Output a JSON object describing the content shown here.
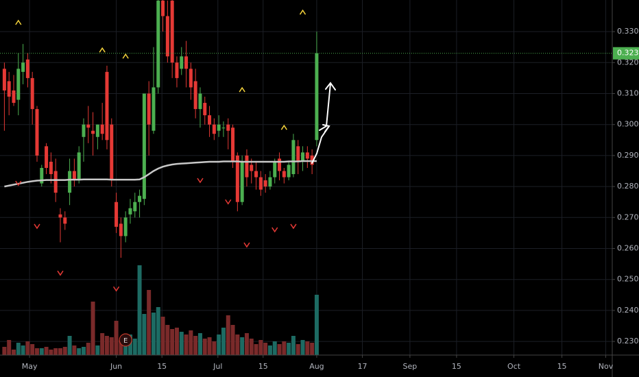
{
  "chart_data": {
    "type": "candlestick",
    "up_color": "#4caf50",
    "down_color": "#e53935",
    "volume_up_color": "#1d6b63",
    "volume_down_color": "#7a2a2a",
    "ma_color": "#c8c8c8",
    "up_signal_color": "#f5d33b",
    "down_signal_color": "#e53935",
    "grid": true,
    "xlim": [
      -0.94,
      130.4
    ],
    "xticks": [
      {
        "value": 5.4,
        "label": "May"
      },
      {
        "value": 24,
        "label": "Jun"
      },
      {
        "value": 33.8,
        "label": "15"
      },
      {
        "value": 45.8,
        "label": "Jul"
      },
      {
        "value": 55.5,
        "label": "15"
      },
      {
        "value": 67,
        "label": "Aug"
      },
      {
        "value": 76.8,
        "label": "17"
      },
      {
        "value": 87,
        "label": "Sep"
      },
      {
        "value": 97,
        "label": "15"
      },
      {
        "value": 109.3,
        "label": "Oct"
      },
      {
        "value": 119.6,
        "label": "15"
      },
      {
        "value": 129,
        "label": "Nov"
      }
    ],
    "ylim": [
      0.2256,
      0.3402
    ],
    "yticks": [
      {
        "value": 0.23,
        "label": "0.230"
      },
      {
        "value": 0.24,
        "label": "0.240"
      },
      {
        "value": 0.25,
        "label": "0.250"
      },
      {
        "value": 0.26,
        "label": "0.260"
      },
      {
        "value": 0.27,
        "label": "0.270"
      },
      {
        "value": 0.28,
        "label": "0.280"
      },
      {
        "value": 0.29,
        "label": "0.290"
      },
      {
        "value": 0.3,
        "label": "0.300"
      },
      {
        "value": 0.31,
        "label": "0.310"
      },
      {
        "value": 0.32,
        "label": "0.320"
      },
      {
        "value": 0.33,
        "label": "0.330"
      }
    ],
    "volume_lim": [
      0,
      518
    ],
    "last_price": {
      "value": 0.323,
      "label": "0.323"
    },
    "earnings_label": "E",
    "earnings_index": 26,
    "open": [
      0.318,
      0.314,
      0.311,
      0.308,
      0.317,
      0.321,
      0.315,
      0.305,
      0.281,
      0.293,
      0.288,
      0.285,
      0.271,
      0.27,
      0.278,
      0.285,
      0.282,
      0.296,
      0.3,
      0.298,
      0.296,
      0.3,
      0.317,
      0.3,
      0.275,
      0.268,
      0.264,
      0.271,
      0.272,
      0.275,
      0.276,
      0.31,
      0.298,
      0.312,
      0.34,
      0.335,
      0.34,
      0.32,
      0.318,
      0.322,
      0.318,
      0.314,
      0.305,
      0.307,
      0.303,
      0.3,
      0.298,
      0.299,
      0.3,
      0.299,
      0.29,
      0.275,
      0.29,
      0.287,
      0.285,
      0.283,
      0.282,
      0.28,
      0.283,
      0.289,
      0.285,
      0.283,
      0.284,
      0.293,
      0.288,
      0.291,
      0.29,
      0.295
    ],
    "high": [
      0.32,
      0.317,
      0.316,
      0.323,
      0.326,
      0.323,
      0.317,
      0.306,
      0.287,
      0.294,
      0.291,
      0.289,
      0.273,
      0.272,
      0.289,
      0.289,
      0.293,
      0.302,
      0.306,
      0.304,
      0.3,
      0.307,
      0.319,
      0.302,
      0.278,
      0.27,
      0.272,
      0.276,
      0.278,
      0.279,
      0.31,
      0.314,
      0.325,
      0.345,
      0.342,
      0.34,
      0.345,
      0.322,
      0.325,
      0.327,
      0.32,
      0.318,
      0.312,
      0.309,
      0.306,
      0.302,
      0.303,
      0.301,
      0.302,
      0.3,
      0.291,
      0.29,
      0.292,
      0.289,
      0.288,
      0.285,
      0.284,
      0.285,
      0.289,
      0.291,
      0.286,
      0.288,
      0.297,
      0.295,
      0.293,
      0.293,
      0.292,
      0.33
    ],
    "low": [
      0.298,
      0.303,
      0.306,
      0.303,
      0.313,
      0.312,
      0.3,
      0.288,
      0.28,
      0.284,
      0.281,
      0.275,
      0.262,
      0.266,
      0.274,
      0.28,
      0.281,
      0.288,
      0.294,
      0.29,
      0.292,
      0.295,
      0.292,
      0.28,
      0.265,
      0.257,
      0.262,
      0.268,
      0.27,
      0.27,
      0.274,
      0.29,
      0.297,
      0.31,
      0.33,
      0.32,
      0.315,
      0.312,
      0.316,
      0.312,
      0.308,
      0.302,
      0.299,
      0.3,
      0.296,
      0.295,
      0.296,
      0.296,
      0.292,
      0.286,
      0.272,
      0.274,
      0.28,
      0.281,
      0.279,
      0.277,
      0.278,
      0.279,
      0.281,
      0.282,
      0.281,
      0.282,
      0.283,
      0.284,
      0.285,
      0.286,
      0.284,
      0.293
    ],
    "close": [
      0.311,
      0.309,
      0.307,
      0.318,
      0.32,
      0.315,
      0.305,
      0.29,
      0.286,
      0.286,
      0.284,
      0.278,
      0.27,
      0.268,
      0.285,
      0.282,
      0.291,
      0.3,
      0.299,
      0.297,
      0.3,
      0.297,
      0.295,
      0.282,
      0.267,
      0.264,
      0.27,
      0.273,
      0.275,
      0.277,
      0.31,
      0.3,
      0.312,
      0.34,
      0.335,
      0.322,
      0.32,
      0.315,
      0.322,
      0.318,
      0.312,
      0.305,
      0.31,
      0.303,
      0.3,
      0.297,
      0.3,
      0.299,
      0.298,
      0.288,
      0.275,
      0.288,
      0.283,
      0.285,
      0.283,
      0.279,
      0.28,
      0.283,
      0.288,
      0.285,
      0.283,
      0.287,
      0.295,
      0.288,
      0.291,
      0.289,
      0.287,
      0.323
    ],
    "volume": [
      12,
      22,
      8,
      18,
      14,
      20,
      16,
      10,
      10,
      12,
      8,
      10,
      10,
      12,
      28,
      14,
      10,
      12,
      18,
      78,
      14,
      32,
      28,
      26,
      50,
      22,
      26,
      30,
      24,
      131,
      60,
      95,
      62,
      70,
      56,
      44,
      38,
      40,
      34,
      30,
      36,
      28,
      32,
      24,
      26,
      20,
      30,
      40,
      58,
      44,
      30,
      26,
      32,
      24,
      16,
      22,
      18,
      14,
      20,
      16,
      20,
      18,
      28,
      16,
      22,
      20,
      18,
      88
    ],
    "ma": [
      0.28,
      0.2803,
      0.2806,
      0.2809,
      0.2812,
      0.2815,
      0.2817,
      0.2819,
      0.282,
      0.2821,
      0.2821,
      0.2821,
      0.2821,
      0.2821,
      0.2822,
      0.2822,
      0.2822,
      0.2823,
      0.2823,
      0.2823,
      0.2823,
      0.2823,
      0.2823,
      0.2822,
      0.2822,
      0.2822,
      0.2822,
      0.2822,
      0.2822,
      0.2823,
      0.283,
      0.284,
      0.285,
      0.2858,
      0.2864,
      0.2868,
      0.2871,
      0.2873,
      0.2874,
      0.2875,
      0.2876,
      0.2877,
      0.2878,
      0.2879,
      0.288,
      0.288,
      0.288,
      0.2881,
      0.2881,
      0.2881,
      0.2881,
      0.288,
      0.288,
      0.288,
      0.288,
      0.288,
      0.288,
      0.288,
      0.288,
      0.288,
      0.288,
      0.2881,
      0.2881,
      0.2881,
      0.2882,
      0.2882,
      0.2882,
      0.2882
    ],
    "up_signals": [
      {
        "index": 3,
        "price": 0.3329
      },
      {
        "index": 21,
        "price": 0.324
      },
      {
        "index": 26,
        "price": 0.322
      },
      {
        "index": 51,
        "price": 0.3112
      },
      {
        "index": 60,
        "price": 0.299
      },
      {
        "index": 64,
        "price": 0.3362
      }
    ],
    "down_signals": [
      {
        "index": 3,
        "price": 0.2811
      },
      {
        "index": 7,
        "price": 0.2672
      },
      {
        "index": 12,
        "price": 0.2521
      },
      {
        "index": 24,
        "price": 0.247
      },
      {
        "index": 42,
        "price": 0.282
      },
      {
        "index": 48,
        "price": 0.2751
      },
      {
        "index": 52,
        "price": 0.2612
      },
      {
        "index": 58,
        "price": 0.2661
      },
      {
        "index": 62,
        "price": 0.2672
      }
    ]
  }
}
